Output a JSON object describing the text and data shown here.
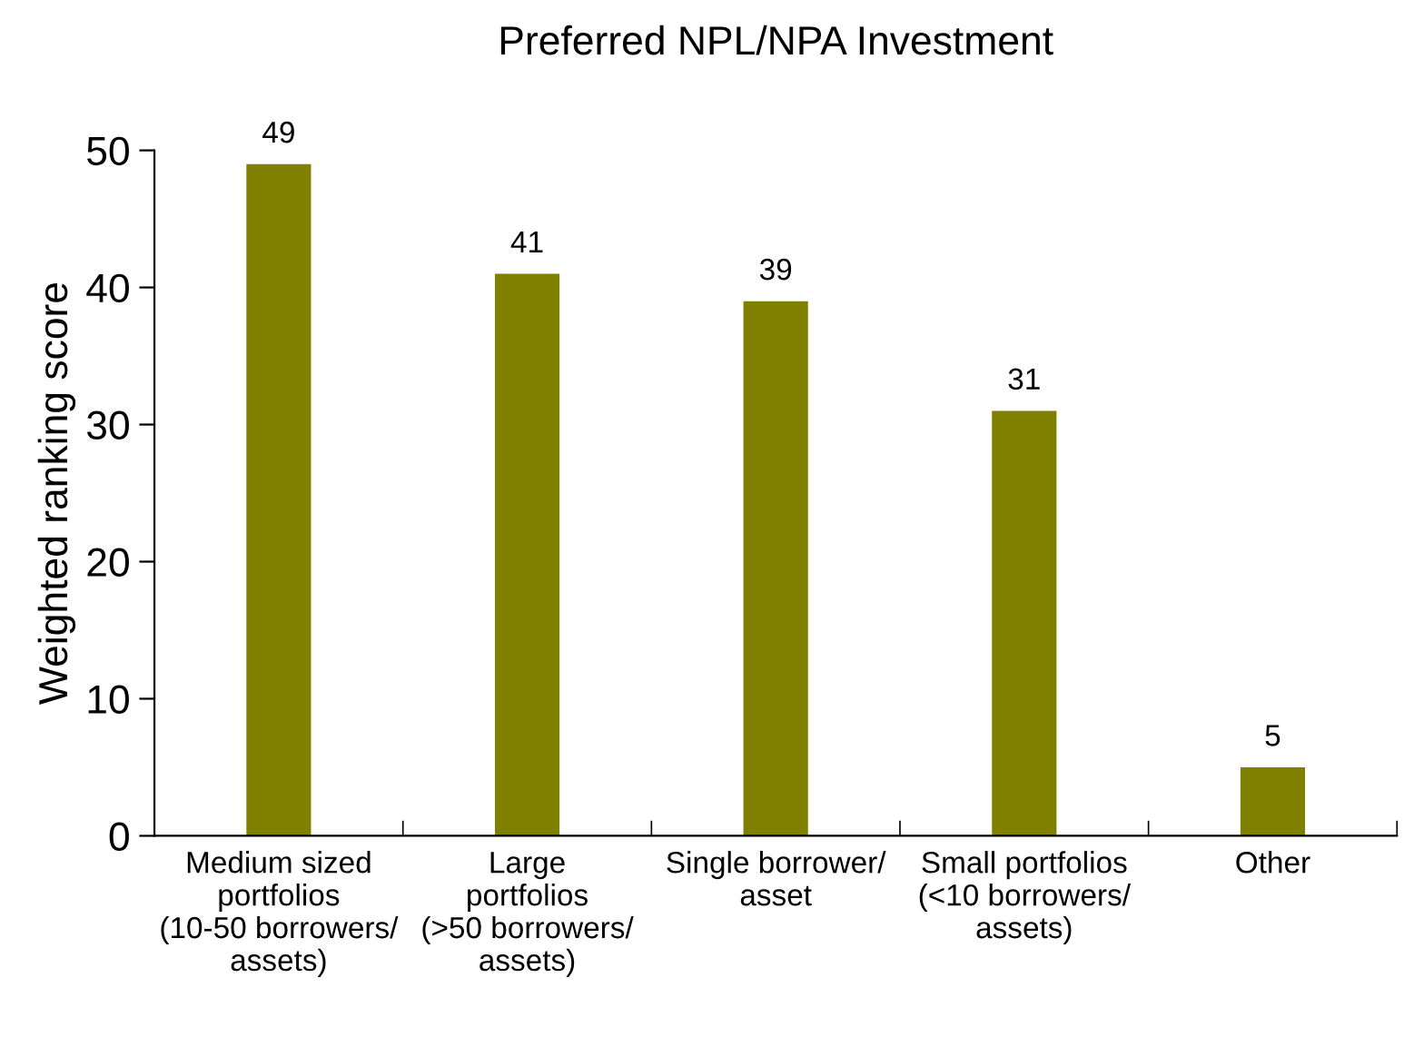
{
  "chart_data": {
    "type": "bar",
    "title": "Preferred NPL/NPA Investment",
    "ylabel": "Weighted ranking score",
    "categories": [
      "Medium sized\nportfolios\n(10-50 borrowers/\nassets)",
      "Large\nportfolios\n(>50 borrowers/\nassets)",
      "Single borrower/\nasset",
      "Small portfolios\n(<10 borrowers/\nassets)",
      "Other"
    ],
    "values": [
      49,
      41,
      39,
      31,
      5
    ],
    "color": "#808000",
    "ylim": [
      0,
      50
    ],
    "yticks": [
      0,
      10,
      20,
      30,
      40,
      50
    ],
    "data_labels": true,
    "grid": false
  }
}
